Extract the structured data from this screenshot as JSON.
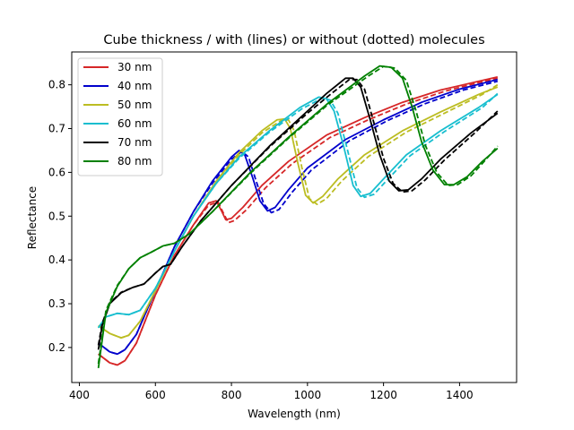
{
  "chart_data": {
    "type": "line",
    "title": "Cube thickness / with (lines) or without (dotted) molecules",
    "xlabel": "Wavelength (nm)",
    "ylabel": "Reflectance",
    "xlim": [
      380,
      1550
    ],
    "ylim": [
      0.12,
      0.875
    ],
    "xticks": [
      400,
      600,
      800,
      1000,
      1200,
      1400
    ],
    "yticks": [
      0.2,
      0.3,
      0.4,
      0.5,
      0.6,
      0.7,
      0.8
    ],
    "grid": false,
    "legend_position": "top-left",
    "series": [
      {
        "name": "30 nm",
        "color": "#d62728",
        "solid": [
          [
            450,
            0.185
          ],
          [
            480,
            0.165
          ],
          [
            500,
            0.16
          ],
          [
            520,
            0.17
          ],
          [
            550,
            0.21
          ],
          [
            600,
            0.32
          ],
          [
            650,
            0.41
          ],
          [
            700,
            0.48
          ],
          [
            740,
            0.53
          ],
          [
            760,
            0.535
          ],
          [
            775,
            0.51
          ],
          [
            785,
            0.492
          ],
          [
            800,
            0.495
          ],
          [
            830,
            0.52
          ],
          [
            880,
            0.57
          ],
          [
            950,
            0.625
          ],
          [
            1050,
            0.685
          ],
          [
            1150,
            0.725
          ],
          [
            1250,
            0.76
          ],
          [
            1350,
            0.788
          ],
          [
            1450,
            0.808
          ],
          [
            1500,
            0.818
          ]
        ],
        "dashed": [
          [
            450,
            0.185
          ],
          [
            480,
            0.165
          ],
          [
            500,
            0.16
          ],
          [
            520,
            0.17
          ],
          [
            550,
            0.21
          ],
          [
            600,
            0.32
          ],
          [
            650,
            0.41
          ],
          [
            700,
            0.48
          ],
          [
            740,
            0.525
          ],
          [
            765,
            0.532
          ],
          [
            780,
            0.505
          ],
          [
            792,
            0.485
          ],
          [
            808,
            0.49
          ],
          [
            840,
            0.515
          ],
          [
            890,
            0.565
          ],
          [
            960,
            0.62
          ],
          [
            1060,
            0.68
          ],
          [
            1160,
            0.72
          ],
          [
            1260,
            0.756
          ],
          [
            1360,
            0.785
          ],
          [
            1450,
            0.805
          ],
          [
            1500,
            0.815
          ]
        ]
      },
      {
        "name": "40 nm",
        "color": "#0000cc",
        "solid": [
          [
            450,
            0.21
          ],
          [
            480,
            0.19
          ],
          [
            500,
            0.185
          ],
          [
            520,
            0.195
          ],
          [
            550,
            0.23
          ],
          [
            600,
            0.33
          ],
          [
            650,
            0.43
          ],
          [
            700,
            0.51
          ],
          [
            750,
            0.58
          ],
          [
            800,
            0.635
          ],
          [
            820,
            0.65
          ],
          [
            835,
            0.64
          ],
          [
            855,
            0.59
          ],
          [
            875,
            0.535
          ],
          [
            895,
            0.512
          ],
          [
            915,
            0.52
          ],
          [
            950,
            0.56
          ],
          [
            1000,
            0.61
          ],
          [
            1100,
            0.675
          ],
          [
            1200,
            0.72
          ],
          [
            1300,
            0.76
          ],
          [
            1400,
            0.79
          ],
          [
            1500,
            0.812
          ]
        ],
        "dashed": [
          [
            450,
            0.21
          ],
          [
            480,
            0.19
          ],
          [
            500,
            0.185
          ],
          [
            520,
            0.195
          ],
          [
            550,
            0.23
          ],
          [
            600,
            0.33
          ],
          [
            650,
            0.43
          ],
          [
            700,
            0.51
          ],
          [
            750,
            0.575
          ],
          [
            800,
            0.63
          ],
          [
            828,
            0.648
          ],
          [
            845,
            0.635
          ],
          [
            865,
            0.58
          ],
          [
            885,
            0.528
          ],
          [
            905,
            0.508
          ],
          [
            925,
            0.515
          ],
          [
            960,
            0.555
          ],
          [
            1010,
            0.605
          ],
          [
            1110,
            0.672
          ],
          [
            1210,
            0.718
          ],
          [
            1310,
            0.757
          ],
          [
            1410,
            0.788
          ],
          [
            1500,
            0.808
          ]
        ]
      },
      {
        "name": "50 nm",
        "color": "#bcbd22",
        "solid": [
          [
            450,
            0.25
          ],
          [
            480,
            0.232
          ],
          [
            510,
            0.222
          ],
          [
            530,
            0.228
          ],
          [
            560,
            0.26
          ],
          [
            600,
            0.33
          ],
          [
            650,
            0.42
          ],
          [
            700,
            0.5
          ],
          [
            760,
            0.58
          ],
          [
            820,
            0.645
          ],
          [
            880,
            0.695
          ],
          [
            920,
            0.72
          ],
          [
            940,
            0.722
          ],
          [
            955,
            0.7
          ],
          [
            975,
            0.62
          ],
          [
            995,
            0.548
          ],
          [
            1015,
            0.53
          ],
          [
            1040,
            0.545
          ],
          [
            1080,
            0.585
          ],
          [
            1150,
            0.64
          ],
          [
            1250,
            0.695
          ],
          [
            1350,
            0.738
          ],
          [
            1450,
            0.778
          ],
          [
            1500,
            0.795
          ]
        ],
        "dashed": [
          [
            450,
            0.25
          ],
          [
            480,
            0.232
          ],
          [
            510,
            0.222
          ],
          [
            530,
            0.228
          ],
          [
            560,
            0.26
          ],
          [
            600,
            0.33
          ],
          [
            650,
            0.42
          ],
          [
            700,
            0.5
          ],
          [
            760,
            0.575
          ],
          [
            820,
            0.64
          ],
          [
            880,
            0.69
          ],
          [
            930,
            0.718
          ],
          [
            950,
            0.72
          ],
          [
            965,
            0.695
          ],
          [
            985,
            0.612
          ],
          [
            1005,
            0.54
          ],
          [
            1025,
            0.527
          ],
          [
            1050,
            0.54
          ],
          [
            1090,
            0.58
          ],
          [
            1160,
            0.636
          ],
          [
            1260,
            0.692
          ],
          [
            1360,
            0.735
          ],
          [
            1460,
            0.778
          ],
          [
            1500,
            0.8
          ]
        ]
      },
      {
        "name": "60 nm",
        "color": "#17becf",
        "solid": [
          [
            450,
            0.245
          ],
          [
            470,
            0.27
          ],
          [
            500,
            0.278
          ],
          [
            530,
            0.275
          ],
          [
            560,
            0.285
          ],
          [
            600,
            0.335
          ],
          [
            650,
            0.42
          ],
          [
            700,
            0.5
          ],
          [
            760,
            0.575
          ],
          [
            820,
            0.635
          ],
          [
            900,
            0.695
          ],
          [
            980,
            0.748
          ],
          [
            1030,
            0.772
          ],
          [
            1050,
            0.768
          ],
          [
            1070,
            0.74
          ],
          [
            1095,
            0.66
          ],
          [
            1120,
            0.57
          ],
          [
            1140,
            0.545
          ],
          [
            1165,
            0.552
          ],
          [
            1200,
            0.585
          ],
          [
            1260,
            0.64
          ],
          [
            1350,
            0.695
          ],
          [
            1450,
            0.748
          ],
          [
            1500,
            0.778
          ]
        ],
        "dashed": [
          [
            450,
            0.245
          ],
          [
            470,
            0.27
          ],
          [
            500,
            0.278
          ],
          [
            530,
            0.275
          ],
          [
            560,
            0.285
          ],
          [
            600,
            0.335
          ],
          [
            650,
            0.42
          ],
          [
            700,
            0.5
          ],
          [
            760,
            0.575
          ],
          [
            820,
            0.632
          ],
          [
            900,
            0.692
          ],
          [
            985,
            0.745
          ],
          [
            1040,
            0.77
          ],
          [
            1060,
            0.765
          ],
          [
            1080,
            0.735
          ],
          [
            1105,
            0.652
          ],
          [
            1130,
            0.565
          ],
          [
            1150,
            0.543
          ],
          [
            1175,
            0.55
          ],
          [
            1210,
            0.583
          ],
          [
            1270,
            0.638
          ],
          [
            1360,
            0.693
          ],
          [
            1460,
            0.748
          ],
          [
            1500,
            0.78
          ]
        ]
      },
      {
        "name": "70 nm",
        "color": "#000000",
        "solid": [
          [
            450,
            0.195
          ],
          [
            460,
            0.25
          ],
          [
            480,
            0.3
          ],
          [
            510,
            0.325
          ],
          [
            540,
            0.337
          ],
          [
            570,
            0.345
          ],
          [
            600,
            0.37
          ],
          [
            620,
            0.385
          ],
          [
            640,
            0.39
          ],
          [
            670,
            0.43
          ],
          [
            720,
            0.49
          ],
          [
            800,
            0.57
          ],
          [
            900,
            0.66
          ],
          [
            1000,
            0.74
          ],
          [
            1050,
            0.78
          ],
          [
            1100,
            0.815
          ],
          [
            1120,
            0.815
          ],
          [
            1140,
            0.795
          ],
          [
            1165,
            0.72
          ],
          [
            1190,
            0.64
          ],
          [
            1215,
            0.58
          ],
          [
            1240,
            0.558
          ],
          [
            1265,
            0.56
          ],
          [
            1300,
            0.585
          ],
          [
            1350,
            0.63
          ],
          [
            1430,
            0.69
          ],
          [
            1500,
            0.735
          ]
        ],
        "dashed": [
          [
            450,
            0.205
          ],
          [
            460,
            0.255
          ],
          [
            480,
            0.302
          ],
          [
            510,
            0.326
          ],
          [
            540,
            0.337
          ],
          [
            570,
            0.345
          ],
          [
            600,
            0.37
          ],
          [
            620,
            0.385
          ],
          [
            640,
            0.39
          ],
          [
            670,
            0.43
          ],
          [
            720,
            0.49
          ],
          [
            800,
            0.57
          ],
          [
            900,
            0.658
          ],
          [
            1000,
            0.735
          ],
          [
            1060,
            0.778
          ],
          [
            1110,
            0.812
          ],
          [
            1130,
            0.812
          ],
          [
            1150,
            0.79
          ],
          [
            1175,
            0.712
          ],
          [
            1200,
            0.632
          ],
          [
            1225,
            0.575
          ],
          [
            1250,
            0.555
          ],
          [
            1275,
            0.558
          ],
          [
            1310,
            0.583
          ],
          [
            1360,
            0.628
          ],
          [
            1440,
            0.69
          ],
          [
            1500,
            0.74
          ]
        ]
      },
      {
        "name": "80 nm",
        "color": "#008000",
        "solid": [
          [
            450,
            0.153
          ],
          [
            470,
            0.28
          ],
          [
            500,
            0.34
          ],
          [
            530,
            0.38
          ],
          [
            560,
            0.405
          ],
          [
            590,
            0.418
          ],
          [
            620,
            0.432
          ],
          [
            650,
            0.438
          ],
          [
            690,
            0.46
          ],
          [
            750,
            0.51
          ],
          [
            850,
            0.6
          ],
          [
            950,
            0.68
          ],
          [
            1050,
            0.755
          ],
          [
            1150,
            0.82
          ],
          [
            1190,
            0.843
          ],
          [
            1220,
            0.84
          ],
          [
            1250,
            0.815
          ],
          [
            1275,
            0.75
          ],
          [
            1300,
            0.67
          ],
          [
            1330,
            0.605
          ],
          [
            1360,
            0.572
          ],
          [
            1385,
            0.572
          ],
          [
            1420,
            0.59
          ],
          [
            1460,
            0.625
          ],
          [
            1500,
            0.655
          ]
        ],
        "dashed": [
          [
            450,
            0.163
          ],
          [
            470,
            0.285
          ],
          [
            500,
            0.342
          ],
          [
            530,
            0.38
          ],
          [
            560,
            0.405
          ],
          [
            590,
            0.418
          ],
          [
            620,
            0.432
          ],
          [
            650,
            0.438
          ],
          [
            690,
            0.46
          ],
          [
            750,
            0.51
          ],
          [
            850,
            0.598
          ],
          [
            950,
            0.678
          ],
          [
            1050,
            0.752
          ],
          [
            1160,
            0.82
          ],
          [
            1200,
            0.842
          ],
          [
            1230,
            0.838
          ],
          [
            1260,
            0.81
          ],
          [
            1285,
            0.742
          ],
          [
            1310,
            0.662
          ],
          [
            1340,
            0.6
          ],
          [
            1370,
            0.57
          ],
          [
            1395,
            0.572
          ],
          [
            1430,
            0.592
          ],
          [
            1470,
            0.63
          ],
          [
            1500,
            0.66
          ]
        ]
      }
    ]
  }
}
